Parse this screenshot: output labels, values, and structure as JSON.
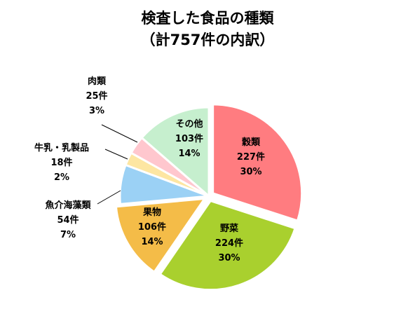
{
  "chart_data": {
    "type": "pie",
    "title": "検査した食品の種類",
    "subtitle": "（計757件の内訳）",
    "slices": [
      {
        "name": "穀類",
        "count_label": "227件",
        "percent_label": "30%",
        "value": 227,
        "color": "#ff7c80",
        "exploded": true
      },
      {
        "name": "野菜",
        "count_label": "224件",
        "percent_label": "30%",
        "value": 224,
        "color": "#a9d02e",
        "exploded": true
      },
      {
        "name": "果物",
        "count_label": "106件",
        "percent_label": "14%",
        "value": 106,
        "color": "#f4bc48",
        "exploded": true
      },
      {
        "name": "魚介海藻類",
        "count_label": "54件",
        "percent_label": "7%",
        "value": 54,
        "color": "#9bd1f5",
        "exploded": false
      },
      {
        "name": "牛乳・乳製品",
        "count_label": "18件",
        "percent_label": "2%",
        "value": 18,
        "color": "#fde6a2",
        "exploded": false
      },
      {
        "name": "肉類",
        "count_label": "25件",
        "percent_label": "3%",
        "value": 25,
        "color": "#ffc7ce",
        "exploded": false
      },
      {
        "name": "その他",
        "count_label": "103件",
        "percent_label": "14%",
        "value": 103,
        "color": "#c6efce",
        "exploded": false
      }
    ]
  }
}
